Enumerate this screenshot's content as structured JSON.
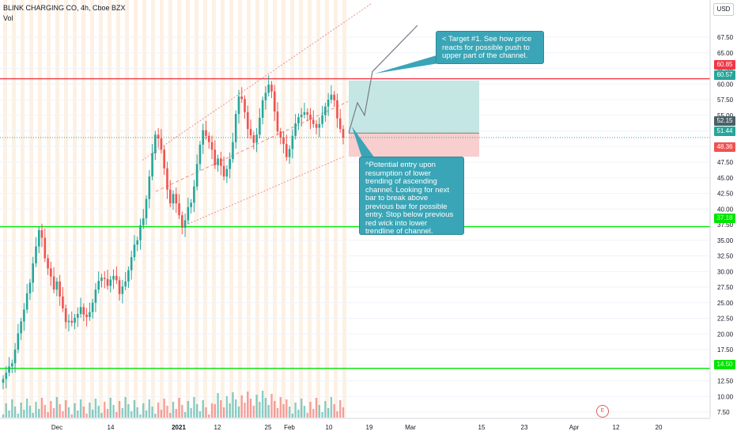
{
  "header": {
    "title": "BLINK CHARGING CO, 4h, Cboe BZX",
    "volume_label": "Vol",
    "currency": "USD"
  },
  "annotations": {
    "target_note": "< Target #1.  See how price reacts for possible push to upper part of the channel.",
    "entry_note": "^Potential entry upon resumption of lower trending of ascending channel. Looking for next bar to break above previous bar for possible entry. Stop below previous red wick into lower trendline of channel.",
    "earnings_marker": "E"
  },
  "price_labels": {
    "resistance": "60.85",
    "target": "60.57",
    "entry": "52.15",
    "current": "51.44",
    "stop": "48.36",
    "support_mid": "37.18",
    "support_low": "14.50"
  },
  "colors": {
    "bull": "#26a69a",
    "bear": "#ef5350",
    "resistance_line": "#f23645",
    "support_line": "#00e600",
    "channel": "#f28b8b",
    "profit_zone": "#b2dfdb",
    "loss_zone": "#f8c6c6",
    "note_bg": "#3aa5b6",
    "entry_tag": "#4a6068",
    "current_tag": "#26a69a"
  },
  "chart_data": {
    "type": "candlestick",
    "title": "BLINK CHARGING CO, 4h, Cboe BZX",
    "y_axis": {
      "ticks": [
        "67.50",
        "65.00",
        "62.50",
        "60.00",
        "57.50",
        "55.00",
        "52.50",
        "50.00",
        "47.50",
        "45.00",
        "42.50",
        "40.00",
        "37.50",
        "35.00",
        "32.50",
        "30.00",
        "27.50",
        "25.00",
        "22.50",
        "20.00",
        "17.50",
        "15.00",
        "12.50",
        "10.00",
        "7.50"
      ],
      "ylim": [
        7.5,
        67.5
      ]
    },
    "x_axis": {
      "ticks": [
        "Dec",
        "14",
        "2021",
        "12",
        "25",
        "Feb",
        "10",
        "19",
        "Mar",
        "15",
        "23",
        "Apr",
        "12",
        "20"
      ]
    },
    "horizontal_lines": [
      {
        "name": "resistance",
        "value": 60.85
      },
      {
        "name": "support",
        "value": 37.18
      },
      {
        "name": "support",
        "value": 14.5
      }
    ],
    "position": {
      "entry": 52.15,
      "target": 60.57,
      "stop": 48.36
    },
    "closes": [
      12.8,
      13.8,
      14.8,
      15.3,
      17.5,
      20.1,
      22.0,
      23.9,
      26.5,
      28.2,
      31.3,
      34.0,
      36.6,
      35.4,
      32.1,
      30.5,
      29.2,
      27.1,
      28.4,
      26.0,
      24.1,
      21.9,
      22.1,
      21.8,
      22.6,
      23.2,
      24.3,
      23.1,
      22.7,
      23.5,
      25.0,
      27.1,
      28.5,
      29.0,
      28.8,
      27.7,
      28.7,
      29.3,
      28.6,
      26.4,
      27.6,
      28.4,
      30.2,
      32.3,
      34.3,
      35.0,
      37.4,
      38.5,
      41.6,
      45.2,
      48.9,
      51.9,
      51.3,
      49.5,
      46.5,
      43.1,
      40.9,
      42.4,
      40.9,
      39.0,
      37.0,
      38.2,
      40.3,
      41.0,
      43.6,
      47.2,
      50.3,
      52.6,
      51.7,
      50.7,
      49.5,
      47.0,
      48.1,
      46.9,
      45.2,
      46.4,
      48.0,
      50.7,
      55.2,
      58.0,
      57.6,
      55.5,
      52.8,
      51.8,
      50.6,
      51.9,
      54.6,
      57.4,
      58.6,
      59.9,
      58.8,
      55.6,
      52.4,
      51.4,
      50.4,
      48.3,
      49.6,
      51.7,
      53.7,
      54.7,
      55.1,
      55.5,
      55.1,
      54.3,
      53.6,
      53.0,
      53.6,
      55.0,
      56.4,
      57.5,
      58.3,
      57.4,
      54.5,
      52.8,
      51.4
    ]
  }
}
